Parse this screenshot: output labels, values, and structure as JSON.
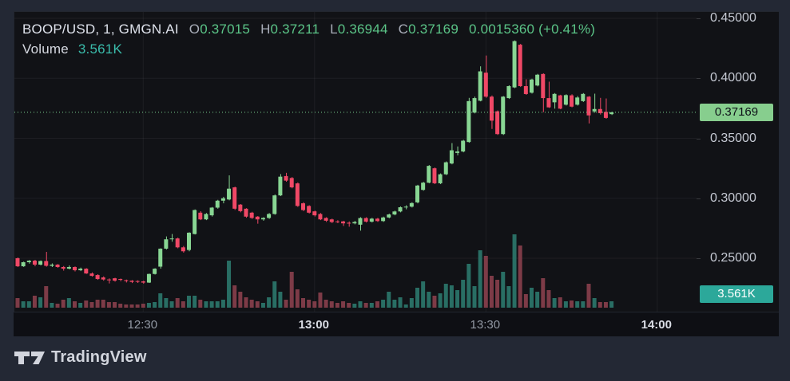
{
  "header": {
    "symbol": "BOOP/USD, 1, GMGN.AI",
    "ohlc": [
      {
        "k": "O",
        "v": "0.37015"
      },
      {
        "k": "H",
        "v": "0.37211"
      },
      {
        "k": "L",
        "v": "0.36944"
      },
      {
        "k": "C",
        "v": "0.37169"
      }
    ],
    "change": "0.0015360 (+0.41%)",
    "volume_label": "Volume",
    "volume_value": "3.561K"
  },
  "attribution": {
    "text": "TradingView"
  },
  "price_axis": {
    "ticks": [
      {
        "label": "0.45000",
        "price": 0.45
      },
      {
        "label": "0.40000",
        "price": 0.4
      },
      {
        "label": "0.35000",
        "price": 0.35
      },
      {
        "label": "0.30000",
        "price": 0.3
      },
      {
        "label": "0.25000",
        "price": 0.25
      }
    ],
    "price_badge": {
      "label": "0.37169",
      "price": 0.37169
    },
    "volume_badge": {
      "label": "3.561K"
    }
  },
  "time_axis": {
    "ticks": [
      {
        "label": "12:30",
        "index": 22,
        "bold": false
      },
      {
        "label": "13:00",
        "index": 52,
        "bold": true
      },
      {
        "label": "13:30",
        "index": 82,
        "bold": false
      },
      {
        "label": "14:00",
        "index": 112,
        "bold": true
      }
    ]
  },
  "colors": {
    "up": "#88d693",
    "down": "#f04866",
    "vol_up": "#296e64",
    "vol_down": "#7d3b47",
    "price_line": "#7ed693",
    "grid": "rgba(240,243,250,0.06)",
    "badge_price_bg": "#87ce8e",
    "badge_price_text": "#0e1118",
    "badge_vol_bg": "#2ca89a",
    "badge_vol_text": "#ffffff",
    "header_value_green": "#5bc487",
    "header_value_teal": "#3abcab"
  },
  "chart_data": {
    "type": "candlestick+volume",
    "title": "BOOP/USD, 1, GMGN.AI",
    "symbol": "BOOP/USD",
    "interval": "1 minute",
    "exchange": "GMGN.AI",
    "legend_position": "top-left",
    "grid": true,
    "last_bar": {
      "open": 0.37015,
      "high": 0.37211,
      "low": 0.36944,
      "close": 0.37169,
      "change_abs": "0.0015360",
      "change_pct": "+0.41%",
      "volume": "3.561K"
    },
    "y_axis": {
      "visible_min": 0.228,
      "visible_max": 0.4316,
      "tick_step": 0.05,
      "last_price_line": 0.37169
    },
    "x_axis": {
      "start_time": "12:08",
      "end_time": "13:52",
      "interval_min": 1,
      "labels": [
        "12:30",
        "13:00",
        "13:30",
        "14:00"
      ]
    },
    "volume_unit": "relative pixel height; only last bar labeled = 3.561K",
    "candles": [
      [
        0.25,
        0.2507,
        0.2427,
        0.2433,
        12
      ],
      [
        0.2433,
        0.2472,
        0.2428,
        0.2467,
        8
      ],
      [
        0.2467,
        0.2485,
        0.2455,
        0.248,
        8
      ],
      [
        0.248,
        0.2487,
        0.2433,
        0.2447,
        15
      ],
      [
        0.2447,
        0.2482,
        0.244,
        0.2477,
        13
      ],
      [
        0.2477,
        0.2553,
        0.243,
        0.2437,
        27
      ],
      [
        0.2437,
        0.2457,
        0.2427,
        0.2447,
        6
      ],
      [
        0.2447,
        0.2452,
        0.242,
        0.2427,
        5
      ],
      [
        0.2427,
        0.2435,
        0.2397,
        0.2413,
        10
      ],
      [
        0.2413,
        0.244,
        0.2407,
        0.2427,
        12
      ],
      [
        0.2427,
        0.2432,
        0.239,
        0.24,
        8
      ],
      [
        0.24,
        0.2422,
        0.2393,
        0.2413,
        6
      ],
      [
        0.2413,
        0.2417,
        0.237,
        0.2373,
        9
      ],
      [
        0.2373,
        0.2382,
        0.2347,
        0.2353,
        7
      ],
      [
        0.236,
        0.2367,
        0.232,
        0.2327,
        10
      ],
      [
        0.234,
        0.2349,
        0.2313,
        0.2323,
        10
      ],
      [
        0.2323,
        0.2332,
        0.229,
        0.232,
        7
      ],
      [
        0.2333,
        0.2337,
        0.2305,
        0.2313,
        7
      ],
      [
        0.2327,
        0.2331,
        0.2308,
        0.232,
        5
      ],
      [
        0.2317,
        0.2322,
        0.2298,
        0.231,
        4
      ],
      [
        0.2313,
        0.2317,
        0.2293,
        0.2303,
        4
      ],
      [
        0.231,
        0.2316,
        0.2294,
        0.2307,
        4
      ],
      [
        0.2307,
        0.2313,
        0.2288,
        0.2297,
        5
      ],
      [
        0.2297,
        0.2372,
        0.2294,
        0.2369,
        6
      ],
      [
        0.2369,
        0.2417,
        0.2364,
        0.2413,
        7
      ],
      [
        0.243,
        0.2583,
        0.2413,
        0.258,
        18
      ],
      [
        0.258,
        0.2682,
        0.2573,
        0.2658,
        12
      ],
      [
        0.2658,
        0.2702,
        0.2638,
        0.2665,
        8
      ],
      [
        0.2665,
        0.2672,
        0.2583,
        0.2591,
        12
      ],
      [
        0.2591,
        0.2602,
        0.2547,
        0.2558,
        8
      ],
      [
        0.2569,
        0.2717,
        0.2558,
        0.2713,
        15
      ],
      [
        0.2702,
        0.2907,
        0.2698,
        0.2902,
        15
      ],
      [
        0.288,
        0.2892,
        0.2818,
        0.2824,
        10
      ],
      [
        0.2824,
        0.2877,
        0.2818,
        0.2869,
        8
      ],
      [
        0.2858,
        0.2927,
        0.2848,
        0.2922,
        8
      ],
      [
        0.2922,
        0.2987,
        0.2913,
        0.298,
        8
      ],
      [
        0.298,
        0.3012,
        0.2958,
        0.3,
        10
      ],
      [
        0.299,
        0.3191,
        0.2983,
        0.308,
        59
      ],
      [
        0.3091,
        0.3097,
        0.2903,
        0.2913,
        28
      ],
      [
        0.2947,
        0.2952,
        0.2883,
        0.2893,
        20
      ],
      [
        0.2913,
        0.2917,
        0.2838,
        0.2847,
        13
      ],
      [
        0.288,
        0.2887,
        0.2828,
        0.2836,
        10
      ],
      [
        0.2847,
        0.2852,
        0.2788,
        0.2824,
        8
      ],
      [
        0.2824,
        0.2842,
        0.2813,
        0.2836,
        6
      ],
      [
        0.2836,
        0.2877,
        0.2828,
        0.2869,
        13
      ],
      [
        0.2869,
        0.3032,
        0.2863,
        0.3024,
        33
      ],
      [
        0.3024,
        0.3202,
        0.3018,
        0.318,
        20
      ],
      [
        0.3185,
        0.3212,
        0.3138,
        0.3147,
        10
      ],
      [
        0.3169,
        0.3177,
        0.3083,
        0.3091,
        45
      ],
      [
        0.3124,
        0.3132,
        0.2928,
        0.2936,
        23
      ],
      [
        0.2958,
        0.2967,
        0.2893,
        0.2902,
        12
      ],
      [
        0.2936,
        0.2942,
        0.2873,
        0.288,
        10
      ],
      [
        0.2891,
        0.2897,
        0.2848,
        0.2858,
        8
      ],
      [
        0.2869,
        0.2877,
        0.2818,
        0.2824,
        19
      ],
      [
        0.2836,
        0.2842,
        0.2803,
        0.2813,
        10
      ],
      [
        0.2824,
        0.283,
        0.2793,
        0.2802,
        8
      ],
      [
        0.2807,
        0.2817,
        0.2793,
        0.2805,
        6
      ],
      [
        0.2807,
        0.2812,
        0.2769,
        0.2791,
        8
      ],
      [
        0.2796,
        0.2807,
        0.2763,
        0.279,
        6
      ],
      [
        0.2791,
        0.2812,
        0.2783,
        0.2802,
        5
      ],
      [
        0.278,
        0.2842,
        0.273,
        0.2835,
        8
      ],
      [
        0.2835,
        0.2842,
        0.2798,
        0.2805,
        6
      ],
      [
        0.2805,
        0.2837,
        0.2798,
        0.283,
        6
      ],
      [
        0.283,
        0.2837,
        0.2803,
        0.281,
        8
      ],
      [
        0.281,
        0.2847,
        0.2803,
        0.284,
        10
      ],
      [
        0.284,
        0.2872,
        0.2833,
        0.2865,
        20
      ],
      [
        0.2865,
        0.2897,
        0.2858,
        0.289,
        10
      ],
      [
        0.289,
        0.2932,
        0.2883,
        0.2925,
        13
      ],
      [
        0.2925,
        0.2942,
        0.2908,
        0.293,
        4
      ],
      [
        0.293,
        0.2967,
        0.2923,
        0.296,
        12
      ],
      [
        0.2966,
        0.3112,
        0.2958,
        0.3106,
        25
      ],
      [
        0.307,
        0.3137,
        0.3063,
        0.313,
        33
      ],
      [
        0.313,
        0.3277,
        0.3125,
        0.327,
        20
      ],
      [
        0.325,
        0.3257,
        0.3118,
        0.3125,
        15
      ],
      [
        0.3125,
        0.3207,
        0.3118,
        0.32,
        18
      ],
      [
        0.32,
        0.3307,
        0.3193,
        0.33,
        30
      ],
      [
        0.329,
        0.346,
        0.3283,
        0.34,
        28
      ],
      [
        0.3378,
        0.3432,
        0.3358,
        0.339,
        22
      ],
      [
        0.339,
        0.3487,
        0.3383,
        0.348,
        35
      ],
      [
        0.3469,
        0.3837,
        0.3463,
        0.381,
        55
      ],
      [
        0.3714,
        0.3847,
        0.3708,
        0.3835,
        27
      ],
      [
        0.3813,
        0.41,
        0.3808,
        0.4058,
        72
      ],
      [
        0.4047,
        0.419,
        0.3838,
        0.3847,
        65
      ],
      [
        0.3847,
        0.3857,
        0.3578,
        0.3647,
        40
      ],
      [
        0.3725,
        0.3732,
        0.3528,
        0.3535,
        35
      ],
      [
        0.3535,
        0.3852,
        0.3528,
        0.3847,
        45
      ],
      [
        0.3835,
        0.3942,
        0.3828,
        0.3935,
        27
      ],
      [
        0.3924,
        0.4316,
        0.3918,
        0.431,
        92
      ],
      [
        0.428,
        0.4287,
        0.3928,
        0.3935,
        78
      ],
      [
        0.3935,
        0.3992,
        0.3862,
        0.3869,
        17
      ],
      [
        0.388,
        0.3997,
        0.3873,
        0.399,
        25
      ],
      [
        0.394,
        0.4037,
        0.3933,
        0.403,
        20
      ],
      [
        0.4036,
        0.4042,
        0.3718,
        0.3835,
        37
      ],
      [
        0.3835,
        0.3972,
        0.3753,
        0.3758,
        22
      ],
      [
        0.38,
        0.3877,
        0.3747,
        0.387,
        12
      ],
      [
        0.3858,
        0.3863,
        0.3742,
        0.3747,
        13
      ],
      [
        0.378,
        0.3867,
        0.3773,
        0.386,
        8
      ],
      [
        0.3858,
        0.3867,
        0.3758,
        0.3764,
        9
      ],
      [
        0.378,
        0.3852,
        0.3773,
        0.384,
        8
      ],
      [
        0.381,
        0.3877,
        0.3803,
        0.387,
        8
      ],
      [
        0.3847,
        0.3852,
        0.3624,
        0.3691,
        30
      ],
      [
        0.3724,
        0.3872,
        0.3713,
        0.3744,
        12
      ],
      [
        0.3744,
        0.3837,
        0.3698,
        0.371,
        7
      ],
      [
        0.372,
        0.3832,
        0.3663,
        0.367,
        7
      ],
      [
        0.37015,
        0.37211,
        0.36944,
        0.37169,
        8
      ]
    ]
  }
}
